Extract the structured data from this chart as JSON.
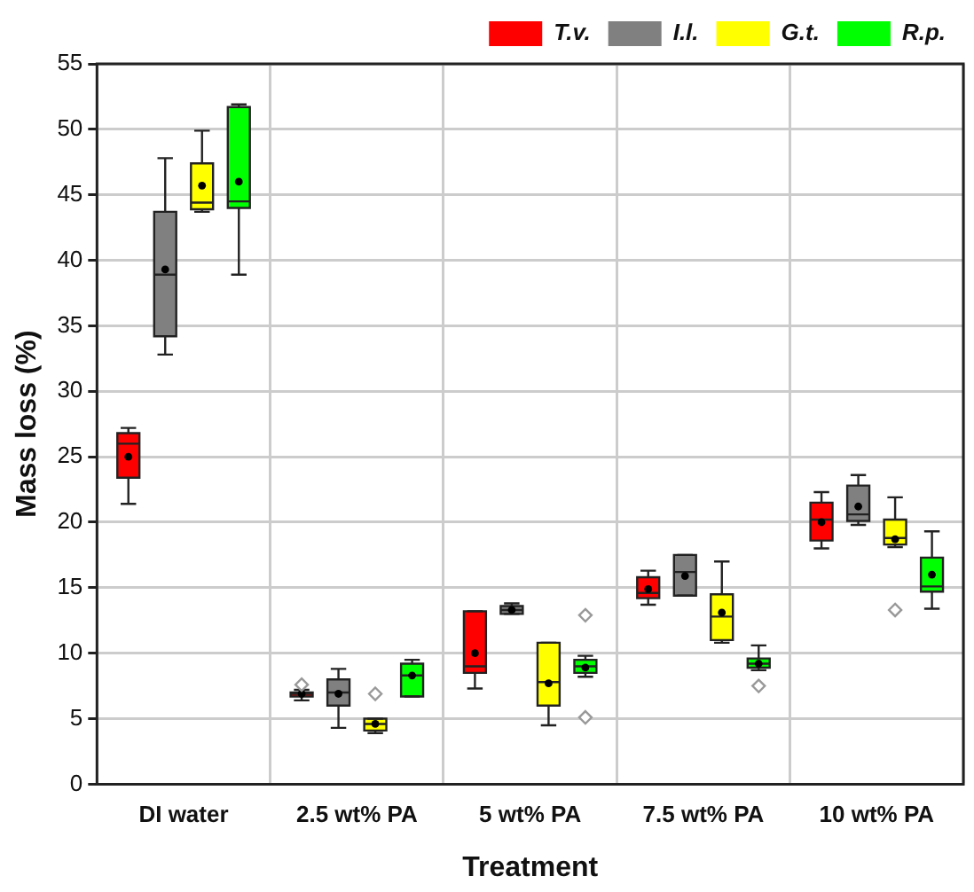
{
  "chart_data": {
    "type": "box",
    "xlabel": "Treatment",
    "ylabel": "Mass loss (%)",
    "categories": [
      "DI water",
      "2.5 wt% PA",
      "5 wt% PA",
      "7.5 wt% PA",
      "10 wt% PA"
    ],
    "ylim": [
      0,
      55
    ],
    "yticks": [
      0,
      5,
      10,
      15,
      20,
      25,
      30,
      35,
      40,
      45,
      50,
      55
    ],
    "grid": true,
    "legend": "top right",
    "series": [
      {
        "name": "T.v.",
        "color": "#ff0000",
        "boxes": [
          {
            "low": 21.4,
            "q1": 23.4,
            "median": 26,
            "q3": 26.8,
            "high": 27.2,
            "mean": 25
          },
          {
            "low": 6.4,
            "q1": 6.7,
            "median": 6.9,
            "q3": 7.0,
            "high": 7.2,
            "mean": 6.9,
            "outliers": [
              7.6
            ]
          },
          {
            "low": 7.3,
            "q1": 8.5,
            "median": 9.0,
            "q3": 13.2,
            "high": 13.2,
            "mean": 10
          },
          {
            "low": 13.7,
            "q1": 14.2,
            "median": 14.6,
            "q3": 15.8,
            "high": 16.3,
            "mean": 14.9
          },
          {
            "low": 18,
            "q1": 18.6,
            "median": 20.2,
            "q3": 21.5,
            "high": 22.3,
            "mean": 20
          }
        ]
      },
      {
        "name": "I.l.",
        "color": "#808080",
        "boxes": [
          {
            "low": 32.8,
            "q1": 34.2,
            "median": 38.9,
            "q3": 43.7,
            "high": 47.8,
            "mean": 39.3
          },
          {
            "low": 4.3,
            "q1": 6.0,
            "median": 7.0,
            "q3": 8.0,
            "high": 8.8,
            "mean": 6.9
          },
          {
            "low": 13.0,
            "q1": 13.0,
            "median": 13.3,
            "q3": 13.6,
            "high": 13.8,
            "mean": 13.3
          },
          {
            "low": 14.4,
            "q1": 14.4,
            "median": 16.2,
            "q3": 17.5,
            "high": 17.5,
            "mean": 15.9
          },
          {
            "low": 19.8,
            "q1": 20.1,
            "median": 20.6,
            "q3": 22.8,
            "high": 23.6,
            "mean": 21.2
          }
        ]
      },
      {
        "name": "G.t.",
        "color": "#ffff00",
        "boxes": [
          {
            "low": 43.7,
            "q1": 43.9,
            "median": 44.4,
            "q3": 47.4,
            "high": 49.9,
            "mean": 45.7
          },
          {
            "low": 3.9,
            "q1": 4.1,
            "median": 4.6,
            "q3": 5.0,
            "high": 5.0,
            "mean": 4.6,
            "outliers": [
              6.9
            ]
          },
          {
            "low": 4.5,
            "q1": 6.0,
            "median": 7.8,
            "q3": 10.8,
            "high": 10.8,
            "mean": 7.7
          },
          {
            "low": 10.8,
            "q1": 11,
            "median": 12.8,
            "q3": 14.5,
            "high": 17,
            "mean": 13.1
          },
          {
            "low": 18.1,
            "q1": 18.3,
            "median": 18.8,
            "q3": 20.2,
            "high": 21.9,
            "mean": 18.7,
            "outliers": [
              13.3
            ]
          }
        ]
      },
      {
        "name": "R.p.",
        "color": "#00ff00",
        "boxes": [
          {
            "low": 38.9,
            "q1": 44,
            "median": 44.5,
            "q3": 51.7,
            "high": 51.9,
            "mean": 46
          },
          {
            "low": 6.7,
            "q1": 6.7,
            "median": 8.3,
            "q3": 9.2,
            "high": 9.5,
            "mean": 8.3
          },
          {
            "low": 8.2,
            "q1": 8.5,
            "median": 9.0,
            "q3": 9.5,
            "high": 9.8,
            "mean": 8.9,
            "outliers": [
              5.1,
              12.9
            ]
          },
          {
            "low": 8.7,
            "q1": 8.9,
            "median": 9.2,
            "q3": 9.6,
            "high": 10.6,
            "mean": 9.2,
            "outliers": [
              7.5
            ]
          },
          {
            "low": 13.4,
            "q1": 14.7,
            "median": 15.1,
            "q3": 17.3,
            "high": 19.3,
            "mean": 16
          }
        ]
      }
    ]
  }
}
